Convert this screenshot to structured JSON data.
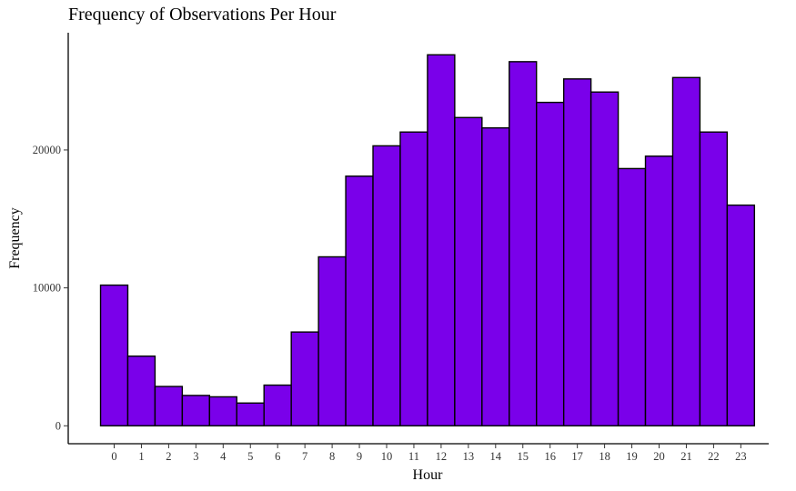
{
  "chart_data": {
    "type": "bar",
    "title": "Frequency of Observations Per Hour",
    "xlabel": "Hour",
    "ylabel": "Frequency",
    "categories": [
      "0",
      "1",
      "2",
      "3",
      "4",
      "5",
      "6",
      "7",
      "8",
      "9",
      "10",
      "11",
      "12",
      "13",
      "14",
      "15",
      "16",
      "17",
      "18",
      "19",
      "20",
      "21",
      "22",
      "23"
    ],
    "values": [
      10200,
      5050,
      2850,
      2200,
      2100,
      1650,
      2950,
      6800,
      12250,
      18100,
      20300,
      21300,
      26900,
      22350,
      21600,
      26400,
      23450,
      25150,
      24200,
      18650,
      19550,
      25250,
      21300,
      16000
    ],
    "yticks": [
      0,
      10000,
      20000
    ],
    "ytick_labels": [
      "0",
      "10000",
      "20000"
    ],
    "ylim": [
      -1300,
      28500
    ],
    "bar_color": "#7a00ea",
    "bar_border": "#000000",
    "grid": false,
    "legend": "none"
  }
}
